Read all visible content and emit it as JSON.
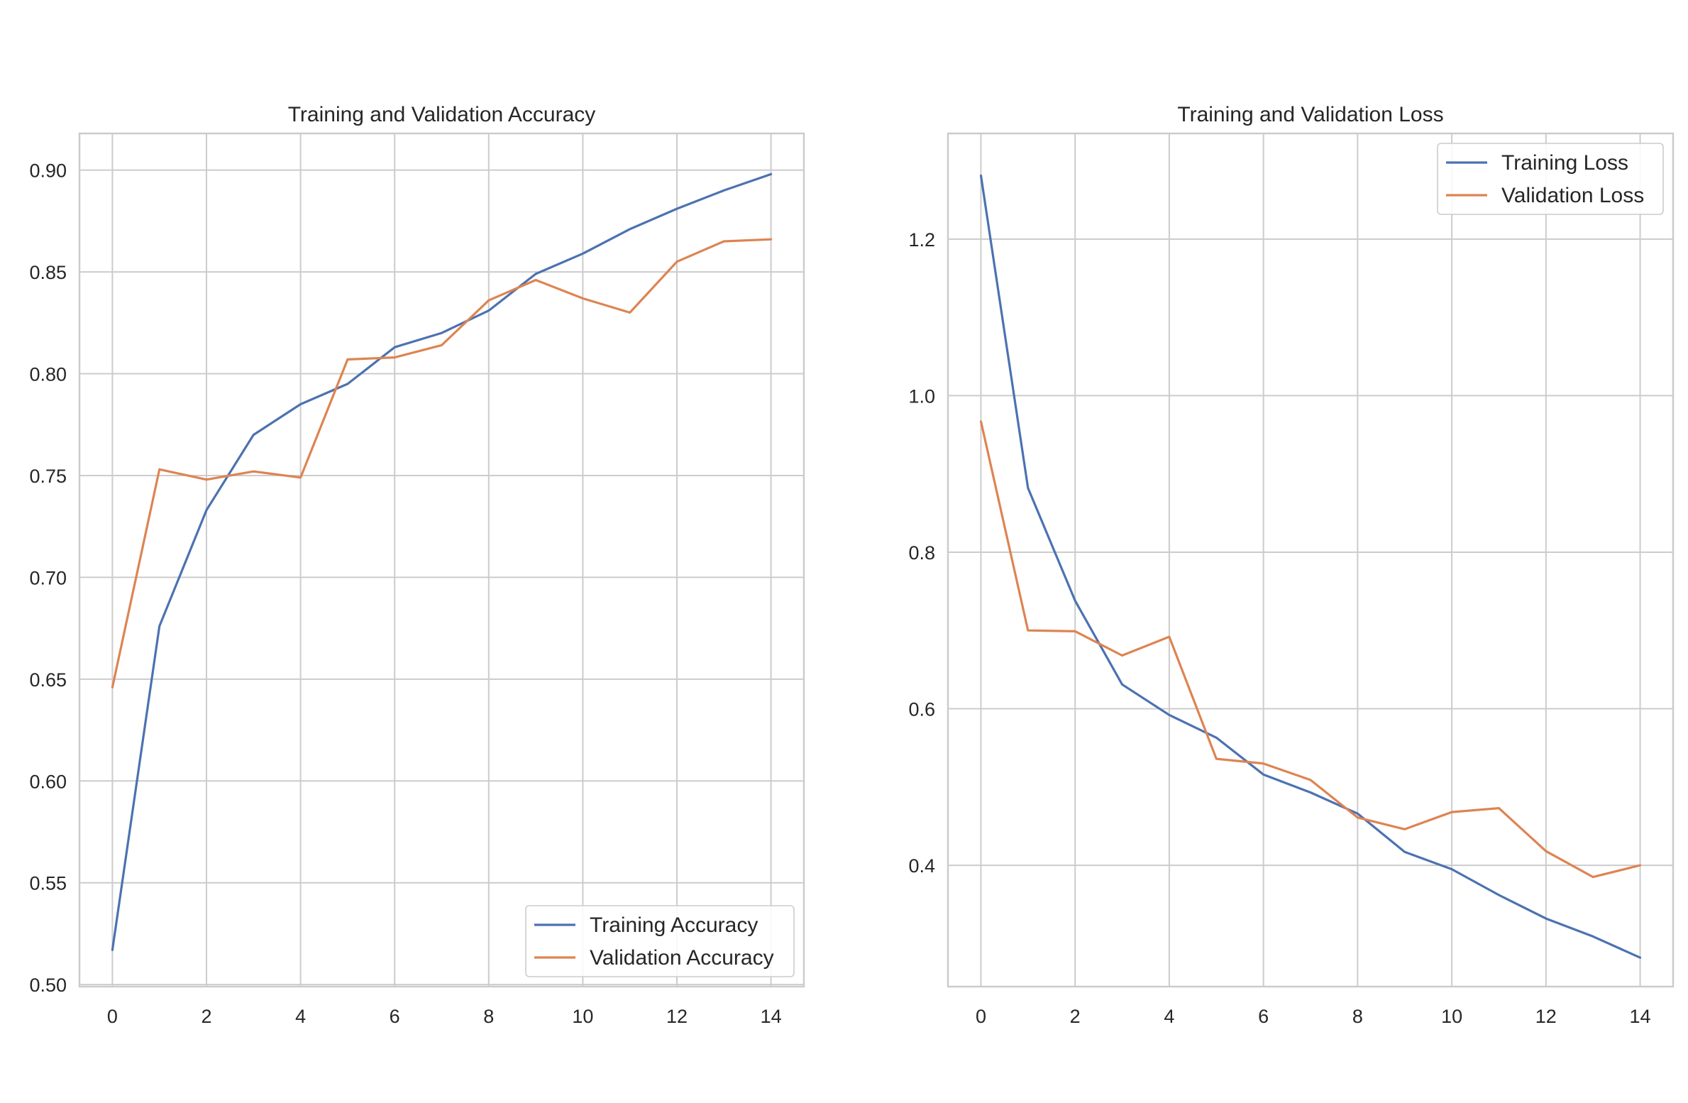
{
  "chart_data": [
    {
      "type": "line",
      "title": "Training and Validation Accuracy",
      "xlabel": "",
      "ylabel": "",
      "xlim": [
        -0.7,
        14.7
      ],
      "ylim": [
        0.499,
        0.918
      ],
      "xticks": [
        0,
        2,
        4,
        6,
        8,
        10,
        12,
        14
      ],
      "xtick_labels": [
        "0",
        "2",
        "4",
        "6",
        "8",
        "10",
        "12",
        "14"
      ],
      "yticks": [
        0.5,
        0.55,
        0.6,
        0.65,
        0.7,
        0.75,
        0.8,
        0.85,
        0.9
      ],
      "ytick_labels": [
        "0.50",
        "0.55",
        "0.60",
        "0.65",
        "0.70",
        "0.75",
        "0.80",
        "0.85",
        "0.90"
      ],
      "grid": true,
      "legend_position": "lower-right",
      "x": [
        0,
        1,
        2,
        3,
        4,
        5,
        6,
        7,
        8,
        9,
        10,
        11,
        12,
        13,
        14
      ],
      "series": [
        {
          "name": "Training Accuracy",
          "color": "#4c72b0",
          "values": [
            0.517,
            0.676,
            0.733,
            0.77,
            0.785,
            0.795,
            0.813,
            0.82,
            0.831,
            0.849,
            0.859,
            0.871,
            0.881,
            0.89,
            0.898
          ]
        },
        {
          "name": "Validation Accuracy",
          "color": "#dd8452",
          "values": [
            0.646,
            0.753,
            0.748,
            0.752,
            0.749,
            0.807,
            0.808,
            0.814,
            0.836,
            0.846,
            0.837,
            0.83,
            0.855,
            0.865,
            0.866
          ]
        }
      ]
    },
    {
      "type": "line",
      "title": "Training and Validation Loss",
      "xlabel": "",
      "ylabel": "",
      "xlim": [
        -0.7,
        14.7
      ],
      "ylim": [
        0.245,
        1.335
      ],
      "xticks": [
        0,
        2,
        4,
        6,
        8,
        10,
        12,
        14
      ],
      "xtick_labels": [
        "0",
        "2",
        "4",
        "6",
        "8",
        "10",
        "12",
        "14"
      ],
      "yticks": [
        0.4,
        0.6,
        0.8,
        1.0,
        1.2
      ],
      "ytick_labels": [
        "0.4",
        "0.6",
        "0.8",
        "1.0",
        "1.2"
      ],
      "grid": true,
      "legend_position": "upper-right",
      "x": [
        0,
        1,
        2,
        3,
        4,
        5,
        6,
        7,
        8,
        9,
        10,
        11,
        12,
        13,
        14
      ],
      "series": [
        {
          "name": "Training Loss",
          "color": "#4c72b0",
          "values": [
            1.281,
            0.882,
            0.738,
            0.631,
            0.592,
            0.563,
            0.516,
            0.493,
            0.466,
            0.417,
            0.395,
            0.362,
            0.332,
            0.309,
            0.282
          ]
        },
        {
          "name": "Validation Loss",
          "color": "#dd8452",
          "values": [
            0.967,
            0.7,
            0.699,
            0.668,
            0.692,
            0.536,
            0.53,
            0.509,
            0.461,
            0.446,
            0.468,
            0.473,
            0.418,
            0.385,
            0.4
          ]
        }
      ]
    }
  ]
}
